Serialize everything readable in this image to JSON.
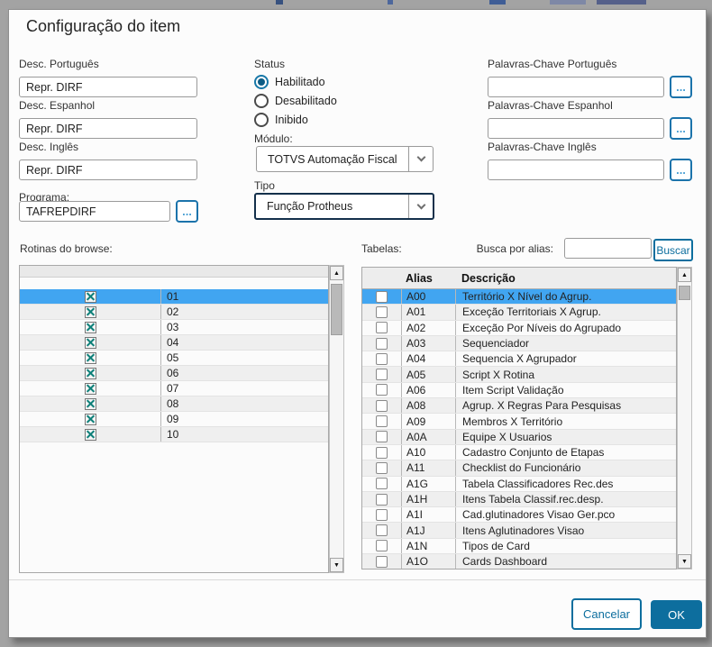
{
  "dialog": {
    "title": "Configuração do item"
  },
  "ui": {
    "ellipsis": "..."
  },
  "fields": {
    "desc_portugues": {
      "label": "Desc. Português",
      "value": "Repr. DIRF"
    },
    "desc_espanhol": {
      "label": "Desc. Espanhol",
      "value": "Repr. DIRF"
    },
    "desc_ingles": {
      "label": "Desc. Inglês",
      "value": "Repr. DIRF"
    },
    "programa": {
      "label": "Programa:",
      "value": "TAFREPDIRF"
    }
  },
  "status": {
    "label": "Status",
    "options": [
      {
        "label": "Habilitado",
        "selected": true
      },
      {
        "label": "Desabilitado",
        "selected": false
      },
      {
        "label": "Inibido",
        "selected": false
      }
    ]
  },
  "modulo": {
    "label": "Módulo:",
    "value": "TOTVS Automação Fiscal"
  },
  "tipo": {
    "label": "Tipo",
    "value": "Função Protheus"
  },
  "keywords": {
    "portugues": {
      "label": "Palavras-Chave Português",
      "value": ""
    },
    "espanhol": {
      "label": "Palavras-Chave Espanhol",
      "value": ""
    },
    "ingles": {
      "label": "Palavras-Chave Inglês",
      "value": ""
    }
  },
  "rotinas": {
    "label": "Rotinas do browse:",
    "selected_index": 0,
    "rows": [
      "01",
      "02",
      "03",
      "04",
      "05",
      "06",
      "07",
      "08",
      "09",
      "10"
    ]
  },
  "tabelas": {
    "label": "Tabelas:",
    "search_label": "Busca por alias:",
    "search_value": "",
    "search_button": "Buscar",
    "columns": [
      "Alias",
      "Descrição"
    ],
    "selected_index": 0,
    "rows": [
      {
        "alias": "A00",
        "desc": "Território X Nível do Agrup."
      },
      {
        "alias": "A01",
        "desc": "Exceção Territoriais X Agrup."
      },
      {
        "alias": "A02",
        "desc": "Exceção Por Níveis do Agrupado"
      },
      {
        "alias": "A03",
        "desc": "Sequenciador"
      },
      {
        "alias": "A04",
        "desc": "Sequencia X Agrupador"
      },
      {
        "alias": "A05",
        "desc": "Script X Rotina"
      },
      {
        "alias": "A06",
        "desc": "Item Script Validação"
      },
      {
        "alias": "A08",
        "desc": "Agrup. X Regras Para Pesquisas"
      },
      {
        "alias": "A09",
        "desc": "Membros X Território"
      },
      {
        "alias": "A0A",
        "desc": "Equipe X Usuarios"
      },
      {
        "alias": "A10",
        "desc": "Cadastro Conjunto de Etapas"
      },
      {
        "alias": "A11",
        "desc": "Checklist do Funcionário"
      },
      {
        "alias": "A1G",
        "desc": "Tabela Classificadores Rec.des"
      },
      {
        "alias": "A1H",
        "desc": "Itens Tabela Classif.rec.desp."
      },
      {
        "alias": "A1I",
        "desc": "Cad.glutinadores Visao Ger.pco"
      },
      {
        "alias": "A1J",
        "desc": "Itens Aglutinadores Visao"
      },
      {
        "alias": "A1N",
        "desc": "Tipos de Card"
      },
      {
        "alias": "A1O",
        "desc": "Cards Dashboard"
      }
    ]
  },
  "footer": {
    "cancel": "Cancelar",
    "ok": "OK"
  },
  "colors": {
    "accent": "#0d6e9e",
    "selected_row": "#41a5f1",
    "icon_teal": "#0e8079"
  }
}
